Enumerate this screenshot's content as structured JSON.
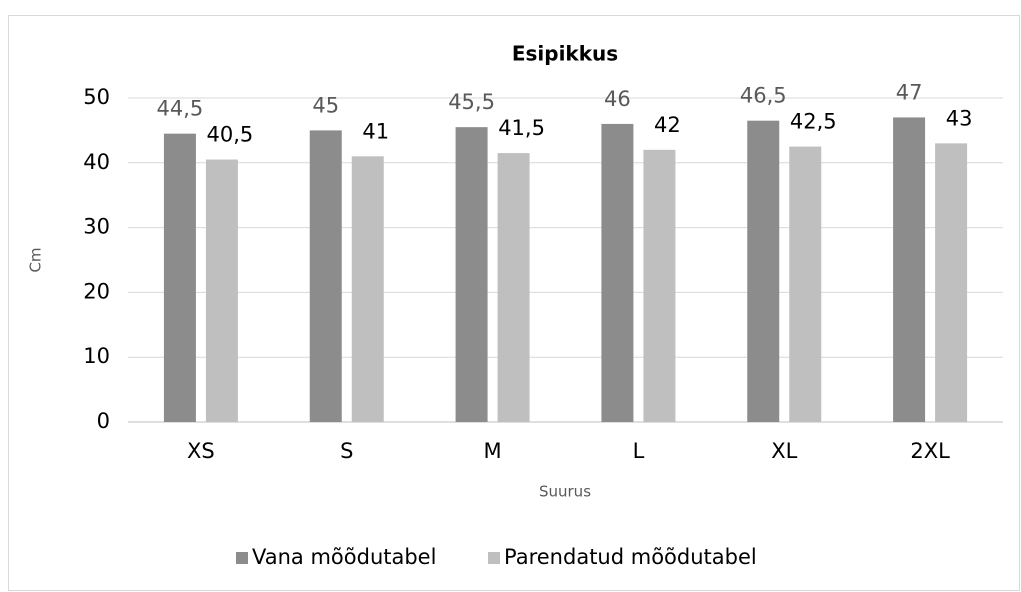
{
  "chart_data": {
    "type": "bar",
    "title": "Esipikkus",
    "x_label": "Suurus",
    "y_label": "Cm",
    "categories": [
      "XS",
      "S",
      "M",
      "L",
      "XL",
      "2XL"
    ],
    "series": [
      {
        "name": "Vana mõõdutabel",
        "color": "#8c8c8c",
        "values": [
          44.5,
          45,
          45.5,
          46,
          46.5,
          47
        ],
        "value_labels": [
          "44,5",
          "45",
          "45,5",
          "46",
          "46,5",
          "47"
        ]
      },
      {
        "name": "Parendatud mõõdutabel",
        "color": "#bfbfbf",
        "values": [
          40.5,
          41,
          41.5,
          42,
          42.5,
          43
        ],
        "value_labels": [
          "40,5",
          "41",
          "41,5",
          "42",
          "42,5",
          "43"
        ]
      }
    ],
    "ylim": [
      0,
      50
    ],
    "yticks": [
      0,
      10,
      20,
      30,
      40,
      50
    ],
    "grid": true,
    "legend": "bottom"
  }
}
